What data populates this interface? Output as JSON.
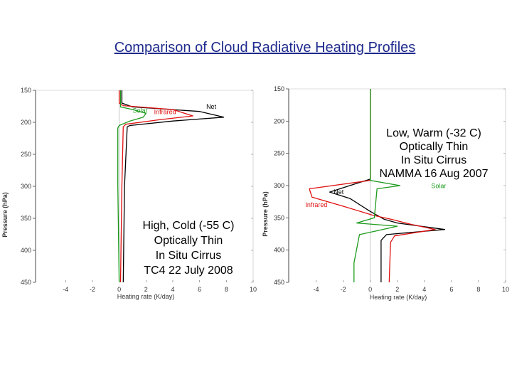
{
  "title": "Comparison of Cloud Radiative Heating Profiles",
  "colors": {
    "net": "#000000",
    "infrared": "#e01010",
    "solar": "#1a9a1a",
    "title": "#1e2a8c"
  },
  "chart_data": [
    {
      "type": "line",
      "xlabel": "Heating rate (K/day)",
      "ylabel": "Pressure (hPa)",
      "xlim": [
        -5.5,
        10
      ],
      "ylim": [
        150,
        450
      ],
      "yinverted": true,
      "xticks": [
        "-4",
        "-2",
        "0",
        "2",
        "4",
        "6",
        "8",
        "10"
      ],
      "yticks": [
        "150",
        "200",
        "250",
        "300",
        "350",
        "400",
        "450"
      ],
      "annotation": [
        "High, Cold (-55 C)",
        "Optically Thin",
        "In Situ Cirrus",
        "TC4 22 July 2008"
      ],
      "series": [
        {
          "name": "Net",
          "key": "net",
          "points": [
            [
              0.2,
              150
            ],
            [
              0.2,
              170
            ],
            [
              1,
              176
            ],
            [
              6,
              183
            ],
            [
              7.8,
              192
            ],
            [
              4,
              198
            ],
            [
              0.8,
              205
            ],
            [
              0.6,
              207
            ],
            [
              0.4,
              300
            ],
            [
              0.3,
              450
            ]
          ]
        },
        {
          "name": "Infrared",
          "key": "infrared",
          "points": [
            [
              0,
              150
            ],
            [
              0,
              170
            ],
            [
              0.3,
              174
            ],
            [
              4,
              180
            ],
            [
              5.5,
              190
            ],
            [
              3,
              196
            ],
            [
              0.5,
              203
            ],
            [
              0.3,
              207
            ],
            [
              0.2,
              300
            ],
            [
              0.1,
              450
            ]
          ]
        },
        {
          "name": "Solar",
          "key": "solar",
          "points": [
            [
              0.1,
              150
            ],
            [
              0.1,
              176
            ],
            [
              1,
              180
            ],
            [
              2,
              186
            ],
            [
              1.8,
              192
            ],
            [
              0.8,
              198
            ],
            [
              0,
              205
            ],
            [
              -0.1,
              209
            ],
            [
              -0.1,
              300
            ],
            [
              0,
              450
            ]
          ]
        }
      ],
      "labels": [
        {
          "text": "Net",
          "key": "net",
          "x": 6.5,
          "y": 179
        },
        {
          "text": "Infrared",
          "key": "infrared",
          "x": 2.6,
          "y": 187
        },
        {
          "text": "Solar",
          "key": "solar",
          "x": 1.0,
          "y": 185
        }
      ]
    },
    {
      "type": "line",
      "xlabel": "Heating rate (K/day)",
      "ylabel": "Pressure (hPa)",
      "xlim": [
        -5.5,
        10
      ],
      "ylim": [
        150,
        450
      ],
      "yinverted": true,
      "xticks": [
        "-4",
        "-2",
        "0",
        "2",
        "4",
        "6",
        "8",
        "10"
      ],
      "yticks": [
        "150",
        "200",
        "250",
        "300",
        "350",
        "400",
        "450"
      ],
      "annotation": [
        "Low, Warm (-32 C)",
        "Optically Thin",
        "In Situ Cirrus",
        "NAMMA 16 Aug 2007"
      ],
      "series": [
        {
          "name": "Net",
          "key": "net",
          "points": [
            [
              0,
              150
            ],
            [
              0,
              290
            ],
            [
              -1.8,
              302
            ],
            [
              -3,
              310
            ],
            [
              -1.5,
              320
            ],
            [
              0,
              340
            ],
            [
              1,
              352
            ],
            [
              2,
              358
            ],
            [
              5.5,
              368
            ],
            [
              1.2,
              376
            ],
            [
              0.8,
              385
            ],
            [
              0.8,
              450
            ]
          ]
        },
        {
          "name": "Infrared",
          "key": "infrared",
          "points": [
            [
              0,
              150
            ],
            [
              0,
              292
            ],
            [
              -4.5,
              305
            ],
            [
              -4.3,
              318
            ],
            [
              -2,
              332
            ],
            [
              0.2,
              346
            ],
            [
              1.5,
              352
            ],
            [
              3,
              360
            ],
            [
              4.8,
              368
            ],
            [
              1.8,
              378
            ],
            [
              1.5,
              388
            ],
            [
              1.4,
              450
            ]
          ]
        },
        {
          "name": "Solar",
          "key": "solar",
          "points": [
            [
              0,
              150
            ],
            [
              0,
              292
            ],
            [
              2.2,
              300
            ],
            [
              0.5,
              305
            ],
            [
              0.3,
              350
            ],
            [
              -1,
              358
            ],
            [
              2,
              363
            ],
            [
              0.5,
              370
            ],
            [
              -0.8,
              376
            ],
            [
              -1.2,
              420
            ],
            [
              -1.2,
              450
            ]
          ]
        }
      ],
      "labels": [
        {
          "text": "Net",
          "key": "net",
          "x": -2.7,
          "y": 313
        },
        {
          "text": "Infrared",
          "key": "infrared",
          "x": -4.8,
          "y": 333
        },
        {
          "text": "Solar",
          "key": "solar",
          "x": 4.5,
          "y": 304
        }
      ]
    }
  ]
}
